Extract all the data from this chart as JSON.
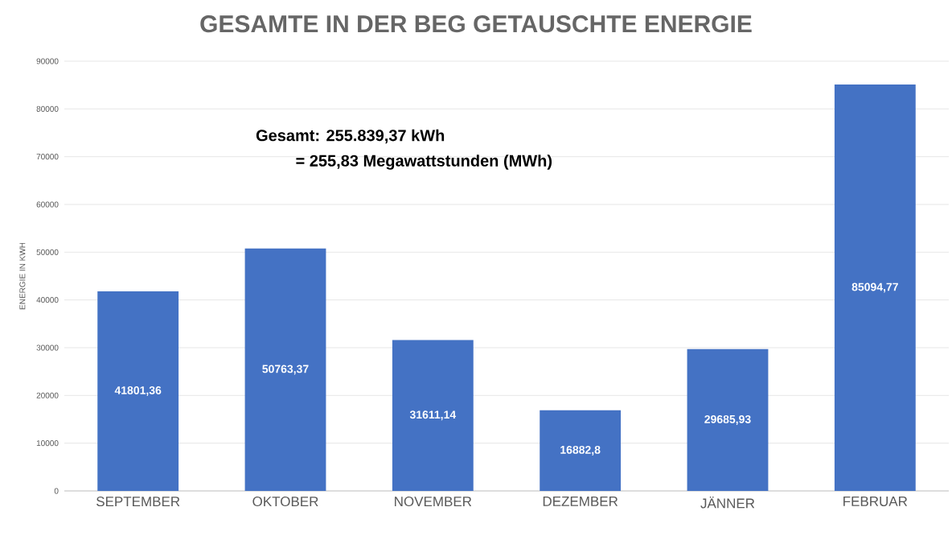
{
  "chart_data": {
    "type": "bar",
    "title": "GESAMTE IN DER BEG GETAUSCHTE ENERGIE",
    "ylabel": "ENERGIE IN KWH",
    "categories": [
      "SEPTEMBER",
      "OKTOBER",
      "NOVEMBER",
      "DEZEMBER",
      "JÄNNER",
      "FEBRUAR"
    ],
    "values": [
      41801.36,
      50763.37,
      31611.14,
      16882.8,
      29685.93,
      85094.77
    ],
    "value_labels": [
      "41801,36",
      "50763,37",
      "31611,14",
      "16882,8",
      "29685,93",
      "85094,77"
    ],
    "color": "#4472c4",
    "ylim": [
      0,
      90000
    ],
    "yticks": [
      0,
      10000,
      20000,
      30000,
      40000,
      50000,
      60000,
      70000,
      80000,
      90000
    ],
    "grid": "y",
    "annotations": [
      "Gesamt: 255.839,37 kWh",
      "= 255,83 Megawattstunden (MWh)"
    ]
  }
}
